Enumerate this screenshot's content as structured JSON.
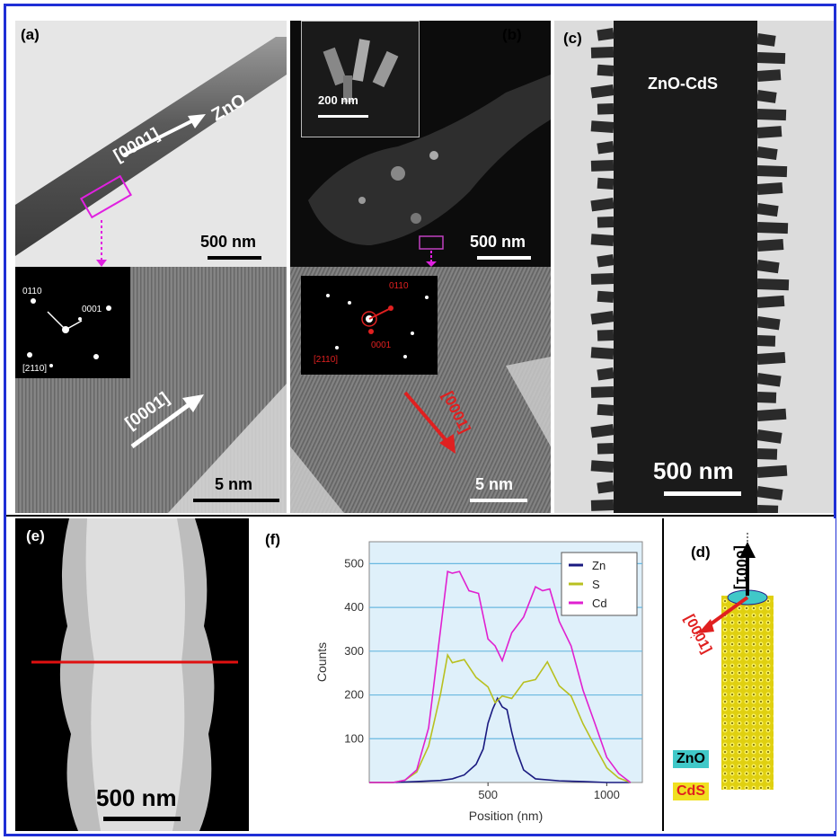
{
  "panels": {
    "a": {
      "label": "(a)",
      "material": "ZnO",
      "direction": "[0001]",
      "scale_top": "500 nm",
      "saed_labels": [
        "0110",
        "0001",
        "[2110]"
      ],
      "hrtem_direction": "[0001]",
      "scale_bottom": "5 nm"
    },
    "b": {
      "label": "(b)",
      "inset_scale": "200 nm",
      "scale_top": "500 nm",
      "saed_labels": [
        "0110",
        "0001",
        "[2110]"
      ],
      "hrtem_direction": "[0001]",
      "scale_bottom": "5 nm"
    },
    "c": {
      "label": "(c)",
      "title": "ZnO-CdS",
      "scale": "500 nm"
    },
    "e": {
      "label": "(e)",
      "scale": "500 nm"
    },
    "f": {
      "label": "(f)"
    },
    "d": {
      "label": "(d)",
      "axis_up": "[0001]",
      "axis_side": "[0001]",
      "legend_zno": "ZnO",
      "legend_cds": "CdS",
      "colors": {
        "zno": "#40c8c8",
        "cds": "#f0e020"
      }
    }
  },
  "chart_data": {
    "type": "line",
    "xlabel": "Position (nm)",
    "ylabel": "Counts",
    "xlim": [
      0,
      1150
    ],
    "ylim": [
      0,
      550
    ],
    "xticks": [
      500,
      1000
    ],
    "yticks": [
      100,
      200,
      300,
      400,
      500
    ],
    "grid": true,
    "legend_position": "top-right",
    "series": [
      {
        "name": "Zn",
        "color": "#1a1a80",
        "x": [
          0,
          100,
          200,
          300,
          350,
          400,
          450,
          480,
          500,
          520,
          540,
          560,
          580,
          600,
          620,
          650,
          700,
          800,
          900,
          1000,
          1100
        ],
        "y": [
          0,
          0,
          2,
          5,
          8,
          18,
          40,
          80,
          130,
          175,
          185,
          180,
          160,
          120,
          70,
          30,
          8,
          4,
          2,
          0,
          0
        ]
      },
      {
        "name": "S",
        "color": "#b8c020",
        "x": [
          0,
          100,
          150,
          200,
          250,
          300,
          330,
          350,
          400,
          450,
          500,
          530,
          560,
          600,
          650,
          700,
          750,
          800,
          850,
          900,
          950,
          1000,
          1050,
          1100
        ],
        "y": [
          0,
          0,
          5,
          25,
          80,
          210,
          280,
          285,
          270,
          250,
          210,
          190,
          190,
          200,
          220,
          245,
          265,
          230,
          190,
          140,
          80,
          35,
          10,
          0
        ]
      },
      {
        "name": "Cd",
        "color": "#e020d0",
        "x": [
          0,
          100,
          150,
          200,
          250,
          300,
          330,
          350,
          380,
          420,
          460,
          500,
          530,
          560,
          600,
          650,
          700,
          730,
          760,
          800,
          850,
          900,
          950,
          1000,
          1050,
          1100
        ],
        "y": [
          0,
          0,
          5,
          30,
          120,
          360,
          470,
          490,
          470,
          450,
          420,
          340,
          300,
          290,
          330,
          390,
          435,
          450,
          430,
          380,
          300,
          220,
          130,
          60,
          20,
          0
        ]
      }
    ]
  }
}
